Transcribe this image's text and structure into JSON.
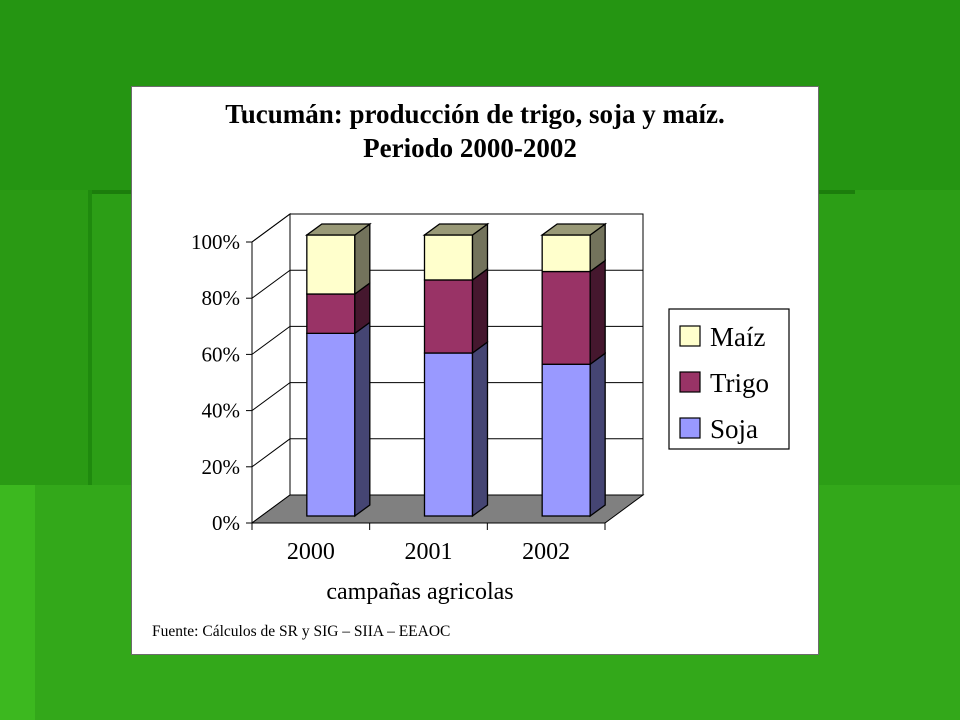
{
  "chart_data": {
    "type": "bar",
    "stacked": true,
    "percent_stacked": true,
    "three_d": true,
    "title": "Tucumán: producción de trigo, soja y maíz.",
    "subtitle": "Periodo 2000-2002",
    "xlabel": "campañas agricolas",
    "ylabel": "",
    "categories": [
      "2000",
      "2001",
      "2002"
    ],
    "y_ticks": [
      "0%",
      "20%",
      "40%",
      "60%",
      "80%",
      "100%"
    ],
    "ylim": [
      0,
      100
    ],
    "grid": true,
    "legend_position": "right",
    "series": [
      {
        "name": "Soja",
        "values": [
          65,
          58,
          54
        ],
        "color": "#9999ff"
      },
      {
        "name": "Trigo",
        "values": [
          14,
          26,
          33
        ],
        "color": "#993366"
      },
      {
        "name": "Maíz",
        "values": [
          21,
          16,
          13
        ],
        "color": "#ffffcc"
      }
    ],
    "legend_order": [
      "Maíz",
      "Trigo",
      "Soja"
    ],
    "source": "Fuente: Cálculos de SR y SIG – SIIA – EEAOC"
  },
  "colors": {
    "background": "#2a9a14",
    "panel": "#ffffff",
    "floor": "#808080",
    "gridline": "#000000"
  }
}
